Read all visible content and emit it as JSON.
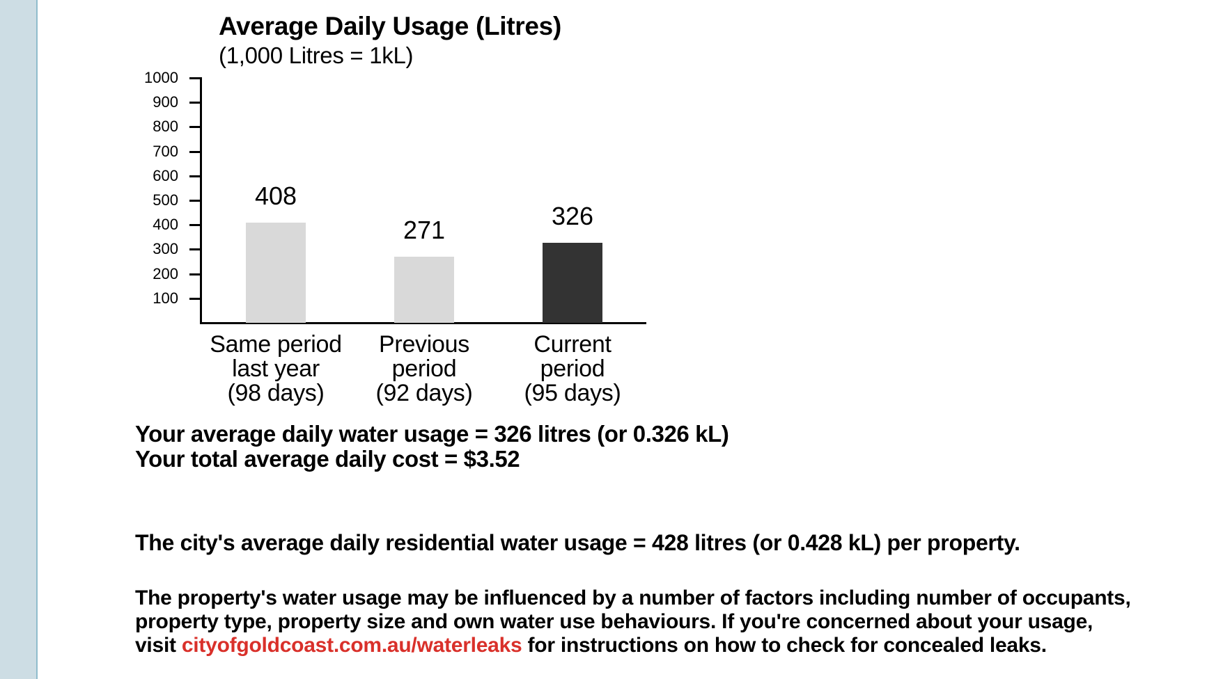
{
  "chart_data": {
    "type": "bar",
    "title": "Average Daily Usage (Litres)",
    "subtitle": "(1,000 Litres = 1kL)",
    "xlabel": "",
    "ylabel": "",
    "ylim": [
      0,
      1000
    ],
    "yticks": [
      100,
      200,
      300,
      400,
      500,
      600,
      700,
      800,
      900,
      1000
    ],
    "grid": false,
    "legend": null,
    "categories": [
      [
        "Same period",
        "last year",
        "(98 days)"
      ],
      [
        "Previous",
        "period",
        "(92 days)"
      ],
      [
        "Current",
        "period",
        "(95 days)"
      ]
    ],
    "values": [
      408,
      271,
      326
    ],
    "value_labels": [
      "408",
      "271",
      "326"
    ],
    "bar_colors": [
      "#d9d9d9",
      "#d9d9d9",
      "#333333"
    ]
  },
  "summary": {
    "usage_line": "Your average daily water usage = 326 litres (or 0.326 kL)",
    "cost_line": "Your total average daily cost = $3.52"
  },
  "city_line": "The city's average daily residential water usage = 428 litres (or 0.428 kL) per property.",
  "paragraph": {
    "line1": "The property's water usage may be influenced by a number of factors including number of occupants,",
    "line2": "property type, property size and own water use behaviours.  If you're concerned about your usage,",
    "line3_prefix": "visit ",
    "link_text": "cityofgoldcoast.com.au/waterleaks",
    "line3_suffix": " for instructions on how to check for concealed leaks."
  },
  "colors": {
    "sidebar": "#cddde4",
    "sidebar_border": "#8fbccc",
    "link": "#d9302a"
  }
}
